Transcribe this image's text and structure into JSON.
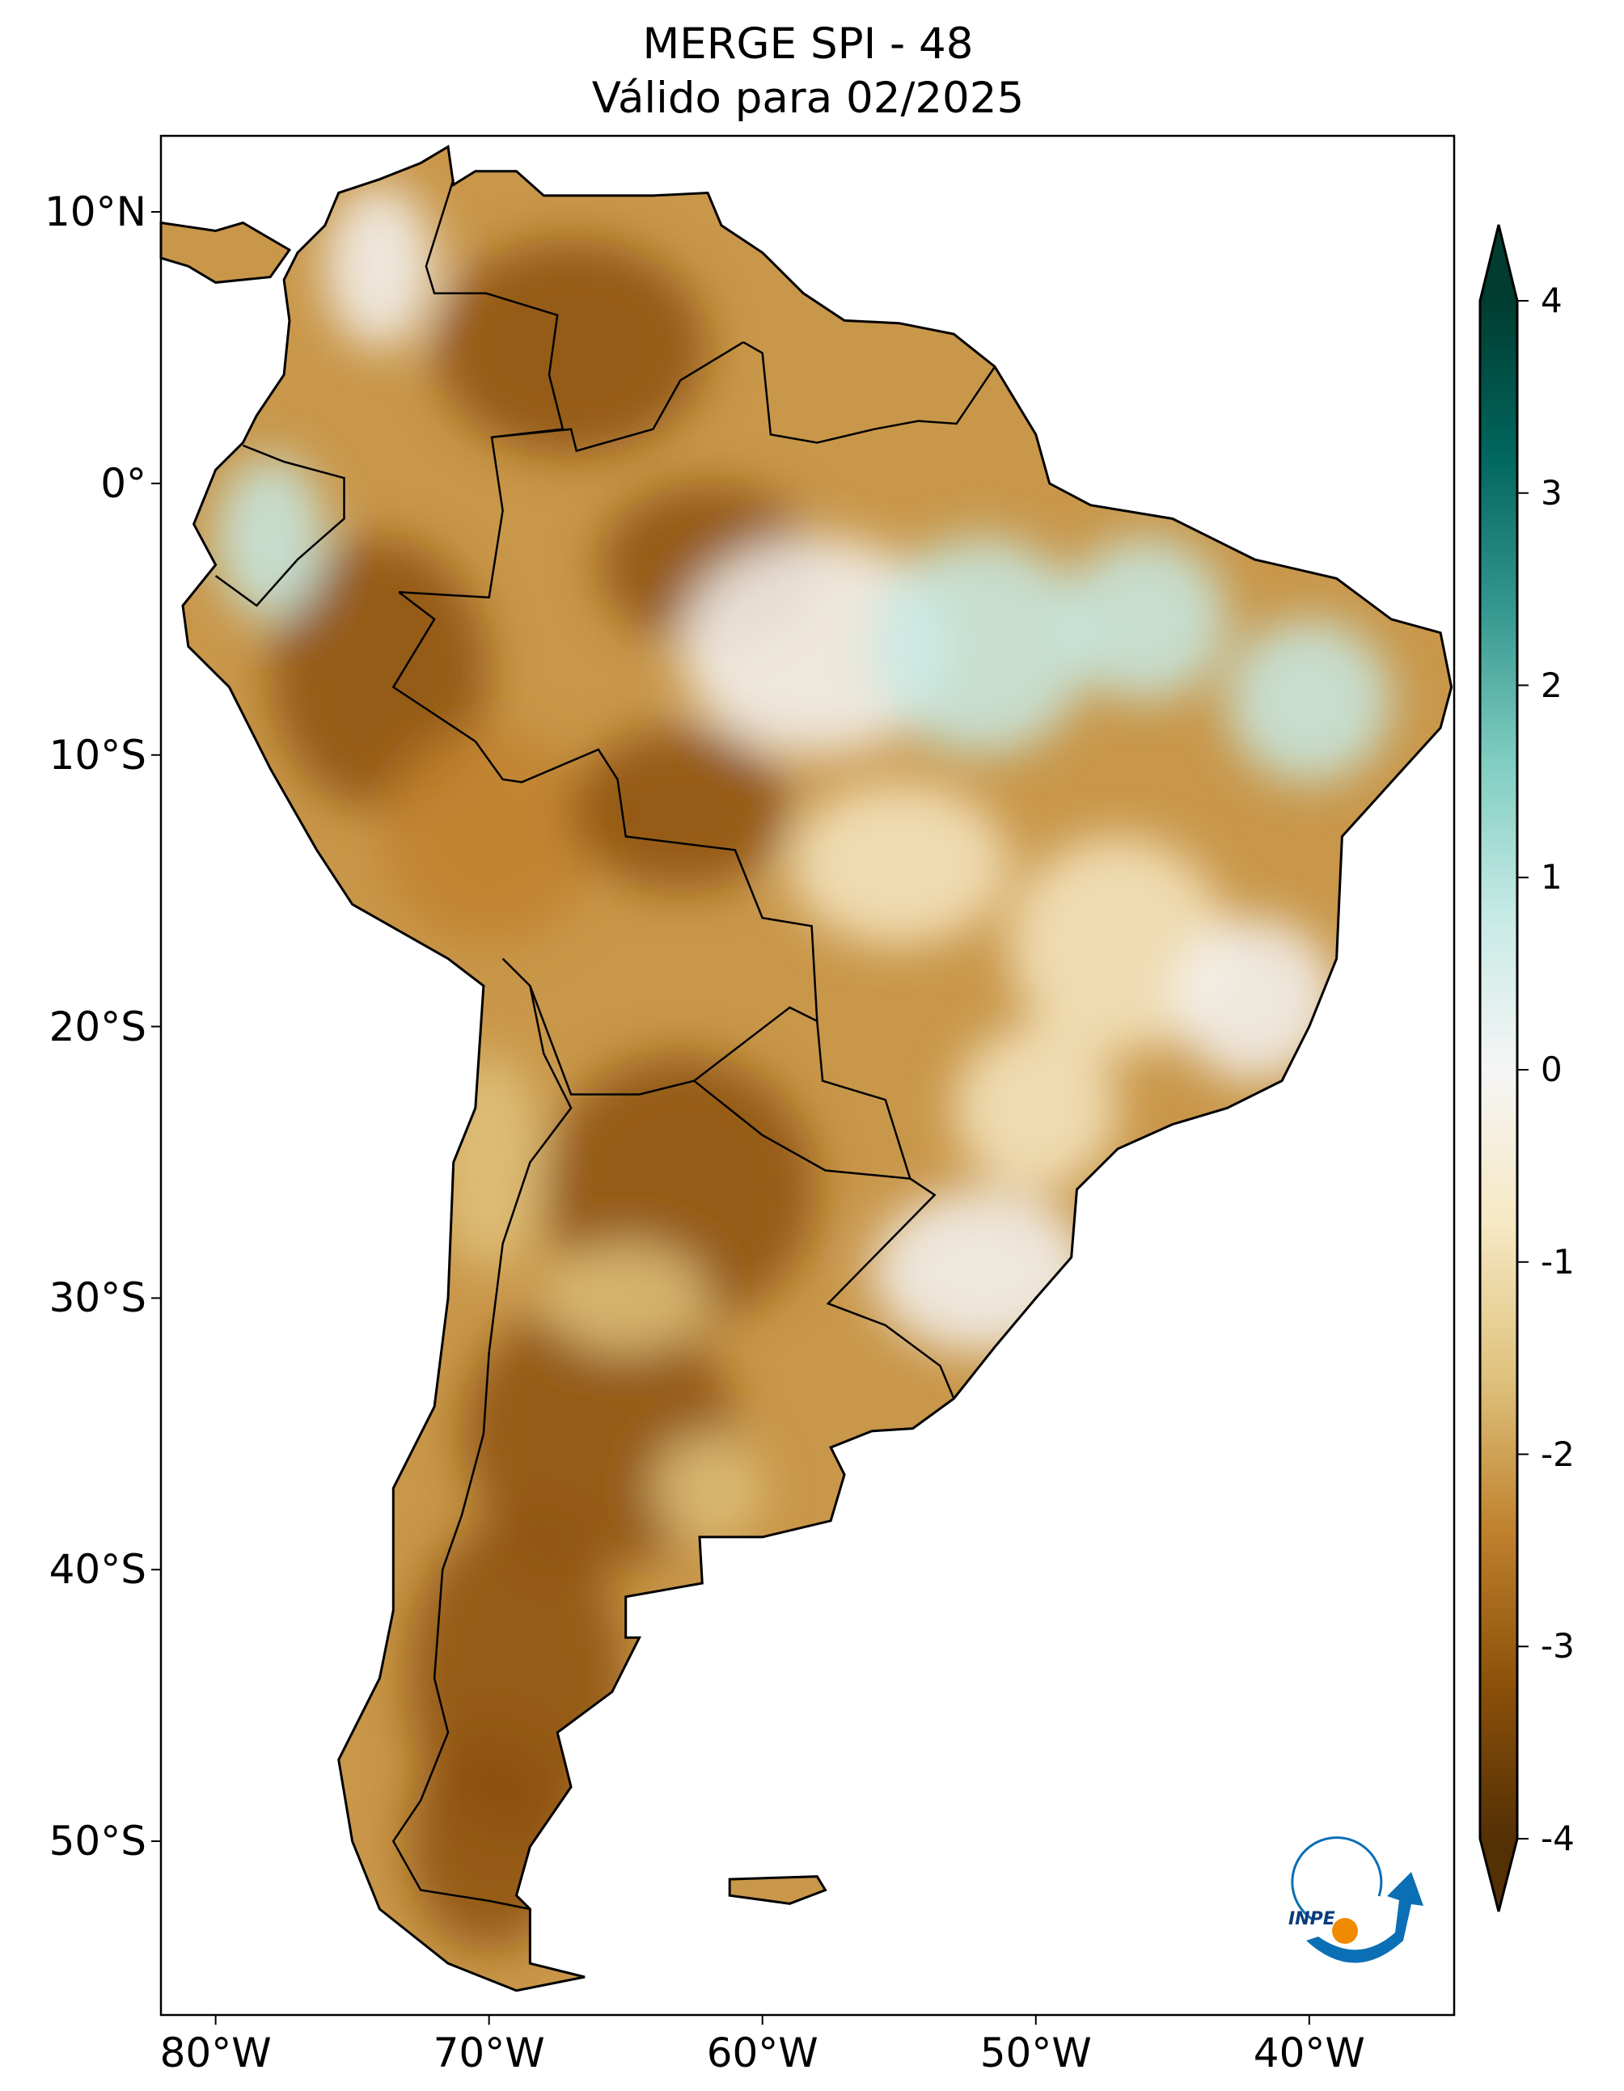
{
  "title": {
    "line1": "MERGE   SPI - 48",
    "line2": "Válido para 02/2025"
  },
  "map": {
    "projection": "PlateCarree",
    "lon_range": [
      -82,
      -34.7
    ],
    "lat_range": [
      -56.4,
      12.8
    ],
    "lat_ticks": [
      {
        "value": 10,
        "label": "10°N"
      },
      {
        "value": 0,
        "label": "0°"
      },
      {
        "value": -10,
        "label": "10°S"
      },
      {
        "value": -20,
        "label": "20°S"
      },
      {
        "value": -30,
        "label": "30°S"
      },
      {
        "value": -40,
        "label": "40°S"
      },
      {
        "value": -50,
        "label": "50°S"
      }
    ],
    "lon_ticks": [
      {
        "value": -80,
        "label": "80°W"
      },
      {
        "value": -70,
        "label": "70°W"
      },
      {
        "value": -60,
        "label": "60°W"
      },
      {
        "value": -50,
        "label": "50°W"
      },
      {
        "value": -40,
        "label": "40°W"
      }
    ],
    "variable": "SPI-48",
    "colormap": "BrBG"
  },
  "colorbar": {
    "range": [
      -4,
      4
    ],
    "extend": "both",
    "ticks": [
      {
        "value": 4,
        "label": "4"
      },
      {
        "value": 3,
        "label": "3"
      },
      {
        "value": 2,
        "label": "2"
      },
      {
        "value": 1,
        "label": "1"
      },
      {
        "value": 0,
        "label": "0"
      },
      {
        "value": -1,
        "label": "-1"
      },
      {
        "value": -2,
        "label": "-2"
      },
      {
        "value": -3,
        "label": "-3"
      },
      {
        "value": -4,
        "label": "-4"
      }
    ],
    "colors": [
      "#543005",
      "#8c510a",
      "#bf812d",
      "#dfc27d",
      "#f6e8c3",
      "#f5f5f5",
      "#c7eae5",
      "#80cdc1",
      "#35978f",
      "#01665e",
      "#003c30"
    ]
  },
  "logo": {
    "text": "INPE",
    "colors": {
      "blue": "#0a6fb5",
      "orange": "#f08a00"
    }
  }
}
